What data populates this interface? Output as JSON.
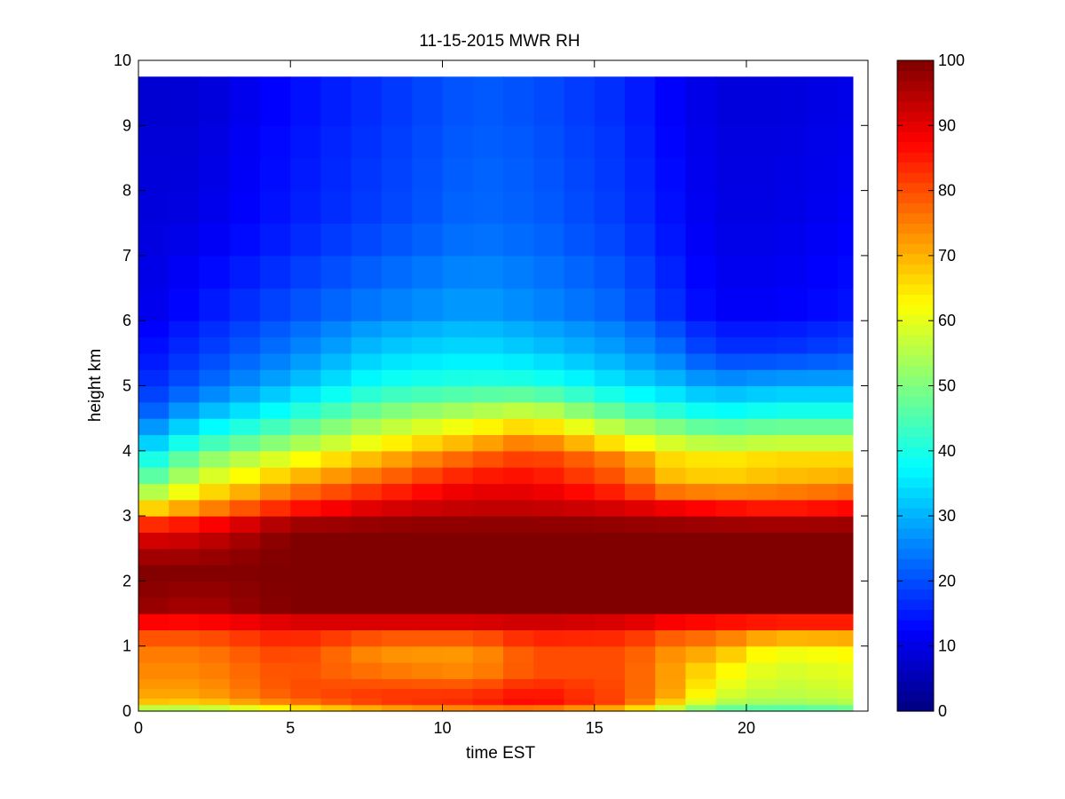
{
  "chart_data": {
    "type": "heatmap",
    "title": "11-15-2015 MWR RH",
    "xlabel": "time EST",
    "ylabel": "height km",
    "xlim": [
      0,
      24
    ],
    "ylim": [
      0,
      10
    ],
    "xticks": [
      0,
      5,
      10,
      15,
      20
    ],
    "yticks": [
      0,
      1,
      2,
      3,
      4,
      5,
      6,
      7,
      8,
      9,
      10
    ],
    "colorbar": {
      "colormap": "jet",
      "range": [
        0,
        100
      ],
      "ticks": [
        0,
        10,
        20,
        30,
        40,
        50,
        60,
        70,
        80,
        90,
        100
      ]
    },
    "grid": false,
    "time_step_hours": 1,
    "time_range_hours": [
      0,
      23.5
    ],
    "height_range_km": [
      0,
      9.75
    ],
    "height_levels_km": [
      0,
      0.1,
      0.2,
      0.35,
      0.5,
      0.75,
      1.0,
      1.25,
      1.5,
      1.75,
      2.0,
      2.25,
      2.5,
      2.75,
      3.0,
      3.25,
      3.5,
      3.75,
      4.0,
      4.25,
      4.5,
      4.75,
      5.0,
      5.25,
      5.5,
      5.75,
      6.0,
      6.5,
      7.0,
      7.5,
      8.0,
      8.5,
      9.0,
      9.75
    ],
    "rh_profiles": {
      "height_km": [
        0,
        0.1,
        0.3,
        0.6,
        1.0,
        1.3,
        1.6,
        2.2,
        2.8,
        3.1,
        3.5,
        3.9,
        4.2,
        4.6,
        5.0,
        5.5,
        6.2,
        7.5,
        9.75
      ],
      "times": [
        0,
        2,
        5,
        8,
        11,
        13,
        16,
        17.5,
        19,
        21,
        23.5
      ],
      "values": [
        [
          45,
          68,
          72,
          74,
          76,
          84,
          98,
          100,
          88,
          66,
          46,
          36,
          28,
          20,
          16,
          13,
          10,
          9,
          8
        ],
        [
          45,
          66,
          72,
          74,
          76,
          84,
          96,
          100,
          90,
          74,
          60,
          50,
          40,
          30,
          22,
          18,
          14,
          10,
          8
        ],
        [
          55,
          74,
          80,
          80,
          82,
          88,
          100,
          100,
          100,
          86,
          72,
          60,
          50,
          40,
          31,
          25,
          20,
          15,
          13
        ],
        [
          62,
          82,
          82,
          76,
          72,
          88,
          100,
          100,
          100,
          92,
          80,
          70,
          60,
          50,
          40,
          33,
          25,
          19,
          17
        ],
        [
          66,
          84,
          82,
          74,
          72,
          88,
          100,
          100,
          100,
          94,
          88,
          78,
          68,
          55,
          42,
          35,
          28,
          23,
          21
        ],
        [
          66,
          88,
          86,
          80,
          80,
          90,
          100,
          100,
          100,
          94,
          88,
          82,
          74,
          58,
          42,
          33,
          26,
          22,
          20
        ],
        [
          60,
          80,
          80,
          80,
          80,
          88,
          100,
          100,
          100,
          92,
          80,
          74,
          60,
          46,
          35,
          28,
          22,
          18,
          16
        ],
        [
          50,
          66,
          72,
          72,
          74,
          84,
          100,
          100,
          100,
          90,
          70,
          66,
          56,
          42,
          32,
          24,
          17,
          14,
          12
        ],
        [
          42,
          54,
          60,
          64,
          72,
          82,
          100,
          100,
          100,
          88,
          68,
          64,
          52,
          38,
          28,
          18,
          12,
          10,
          9
        ],
        [
          40,
          52,
          56,
          58,
          62,
          80,
          100,
          100,
          100,
          86,
          70,
          66,
          54,
          40,
          30,
          18,
          12,
          10,
          9
        ],
        [
          42,
          54,
          58,
          60,
          64,
          80,
          100,
          100,
          100,
          88,
          72,
          66,
          54,
          40,
          30,
          20,
          14,
          12,
          10
        ]
      ]
    }
  }
}
